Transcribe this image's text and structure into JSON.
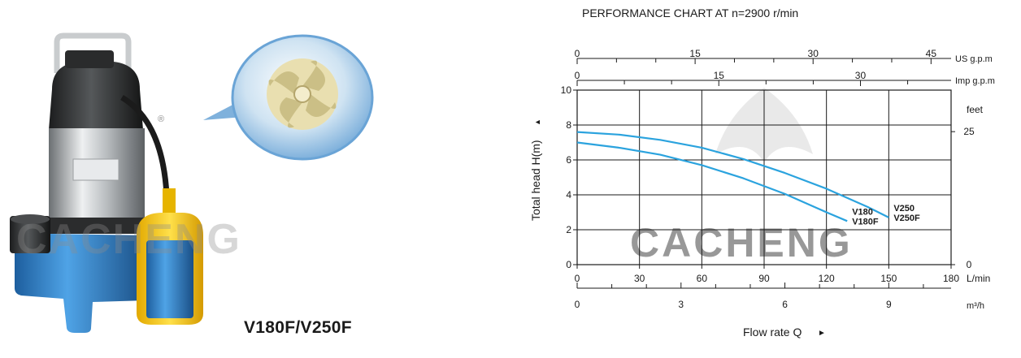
{
  "product": {
    "model_label": "V180F/V250F",
    "watermark": "CACHENG",
    "registered_mark": "®",
    "image_subject": "submersible-pump-with-float-switch",
    "impeller_subject": "vortex-impeller"
  },
  "chart_data": {
    "type": "line",
    "title": "PERFORMANCE CHART AT n=2900 r/min",
    "ylabel": "Total head H(m)",
    "y_arrow": "▲",
    "xlabel": "Flow rate Q",
    "x_arrow": "►",
    "watermark": "CACHENG",
    "grid": true,
    "x_unit": "L/min",
    "xlim": [
      0,
      180
    ],
    "x_ticks": [
      "0",
      "30",
      "60",
      "90",
      "120",
      "150",
      "180"
    ],
    "ylim": [
      0,
      10
    ],
    "y_ticks": [
      "0",
      "2",
      "4",
      "6",
      "8",
      "10"
    ],
    "right_axis": {
      "unit": "feet",
      "ticks": [
        {
          "label": "0",
          "value_m": 0
        },
        {
          "label": "25",
          "value_m": 7.62
        }
      ]
    },
    "secondary_axes": [
      {
        "unit": "US g.p.m",
        "max": 47.55,
        "tick_labels": [
          "0",
          "15",
          "30",
          "45"
        ],
        "label_values": [
          0,
          15,
          30,
          45
        ],
        "minor_step": 5
      },
      {
        "unit": "Imp g.p.m",
        "max": 39.6,
        "tick_labels": [
          "0",
          "15",
          "30"
        ],
        "label_values": [
          0,
          15,
          30
        ],
        "minor_step": 5
      },
      {
        "unit": "m³/h",
        "max": 10.8,
        "tick_labels": [
          "0",
          "3",
          "6",
          "9"
        ],
        "label_values": [
          0,
          3,
          6,
          9
        ],
        "minor_step": 1
      }
    ],
    "series": [
      {
        "name": "V250",
        "name2": "V250F",
        "color": "#2ba3de",
        "x": [
          0,
          20,
          40,
          60,
          80,
          100,
          120,
          140,
          150
        ],
        "y": [
          7.6,
          7.45,
          7.15,
          6.7,
          6.05,
          5.25,
          4.35,
          3.3,
          2.7
        ]
      },
      {
        "name": "V180",
        "name2": "V180F",
        "color": "#2ba3de",
        "x": [
          0,
          20,
          40,
          60,
          80,
          100,
          120,
          130
        ],
        "y": [
          7.0,
          6.7,
          6.3,
          5.7,
          4.95,
          4.05,
          3.0,
          2.5
        ]
      }
    ]
  }
}
